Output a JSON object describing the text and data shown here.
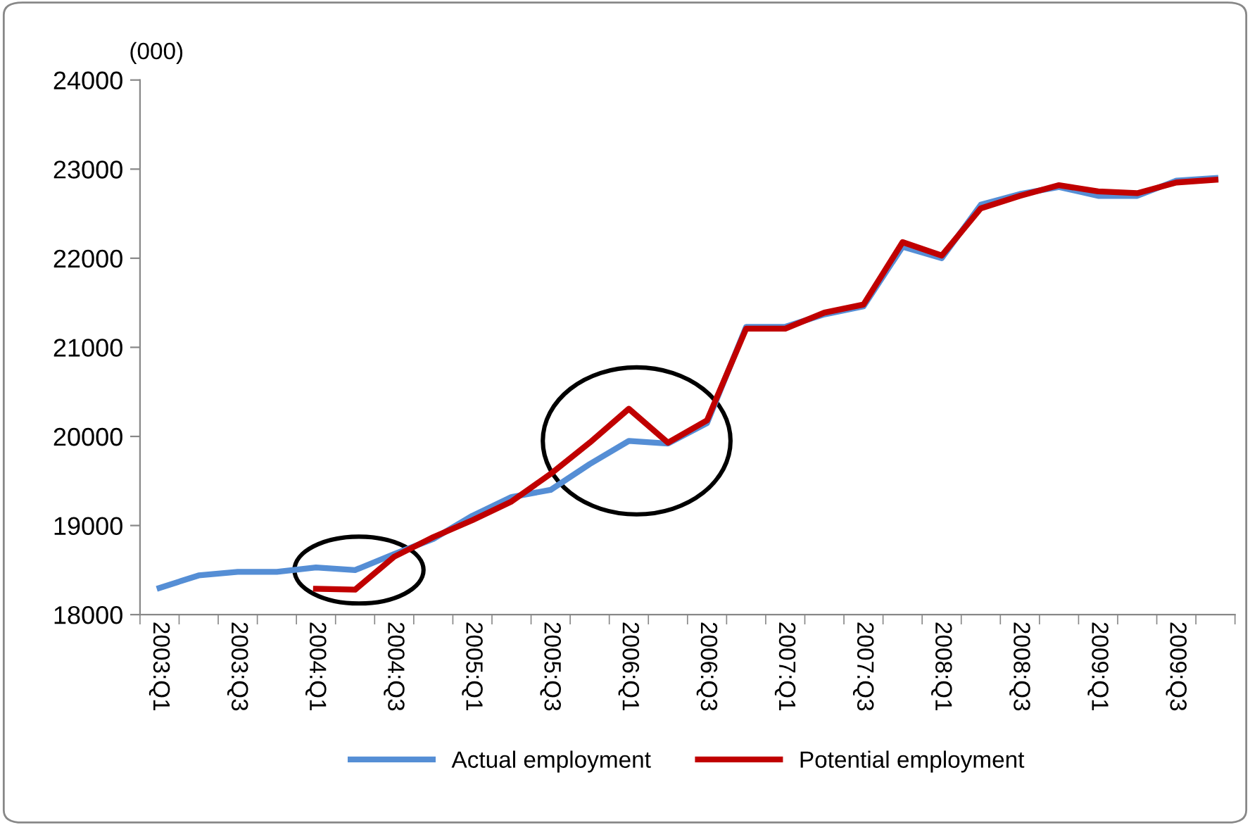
{
  "chart_data": {
    "type": "line",
    "ylabel": "(000)",
    "categories": [
      "2003:Q1",
      null,
      "2003:Q3",
      null,
      "2004:Q1",
      null,
      "2004:Q3",
      null,
      "2005:Q1",
      null,
      "2005:Q3",
      null,
      "2006:Q1",
      null,
      "2006:Q3",
      null,
      "2007:Q1",
      null,
      "2007:Q3",
      null,
      "2008:Q1",
      null,
      "2008:Q3",
      null,
      "2009:Q1",
      null,
      "2009:Q3",
      null
    ],
    "series": [
      {
        "name": "Actual employment",
        "color": "#558ed5",
        "values": [
          18300,
          18440,
          18480,
          18480,
          18530,
          18500,
          18680,
          18850,
          19110,
          19320,
          19400,
          19690,
          19950,
          19920,
          20150,
          21230,
          21230,
          21370,
          21460,
          22130,
          22000,
          22600,
          22720,
          22800,
          22700,
          22700,
          22870,
          22900
        ]
      },
      {
        "name": "Potential employment",
        "color": "#c00000",
        "values": [
          null,
          null,
          null,
          null,
          18290,
          18280,
          18650,
          18870,
          19060,
          19270,
          19580,
          19930,
          20310,
          19930,
          20180,
          21210,
          21210,
          21390,
          21480,
          22180,
          22030,
          22560,
          22700,
          22820,
          22750,
          22730,
          22850,
          22880
        ]
      }
    ],
    "ylim": [
      18000,
      24000
    ],
    "yticks": [
      18000,
      19000,
      20000,
      21000,
      22000,
      23000,
      24000
    ],
    "grid": false,
    "legend": "bottom",
    "marker": "none",
    "line_style": "solid"
  }
}
